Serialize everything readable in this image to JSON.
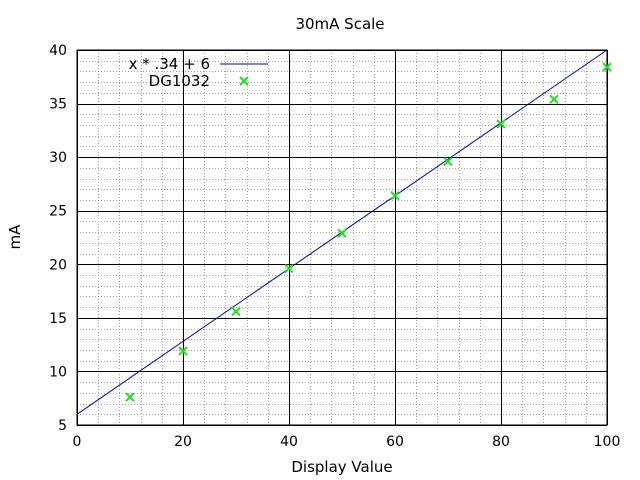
{
  "chart_data": {
    "type": "scatter",
    "title": "30mA Scale",
    "xlabel": "Display Value",
    "ylabel": "mA",
    "xlim": [
      0,
      100
    ],
    "ylim": [
      5,
      40
    ],
    "x_ticks": [
      0,
      20,
      40,
      60,
      80,
      100
    ],
    "y_ticks": [
      5,
      10,
      15,
      20,
      25,
      30,
      35,
      40
    ],
    "x_minor_step": 4,
    "y_minor_step": 1,
    "grid": true,
    "legend_position": "top-left",
    "series": [
      {
        "name": "x * .34 + 6",
        "kind": "line",
        "color": "#0000aa",
        "slope": 0.34,
        "intercept": 6,
        "x": [
          0,
          100
        ],
        "y": [
          6,
          40
        ]
      },
      {
        "name": "DG1032",
        "kind": "points",
        "color": "#22dd22",
        "marker": "x",
        "x": [
          10,
          20,
          30,
          40,
          50,
          60,
          70,
          80,
          90,
          100
        ],
        "y": [
          7.6,
          11.9,
          15.6,
          19.6,
          22.9,
          26.4,
          29.6,
          33.1,
          35.4,
          38.4
        ]
      }
    ]
  }
}
